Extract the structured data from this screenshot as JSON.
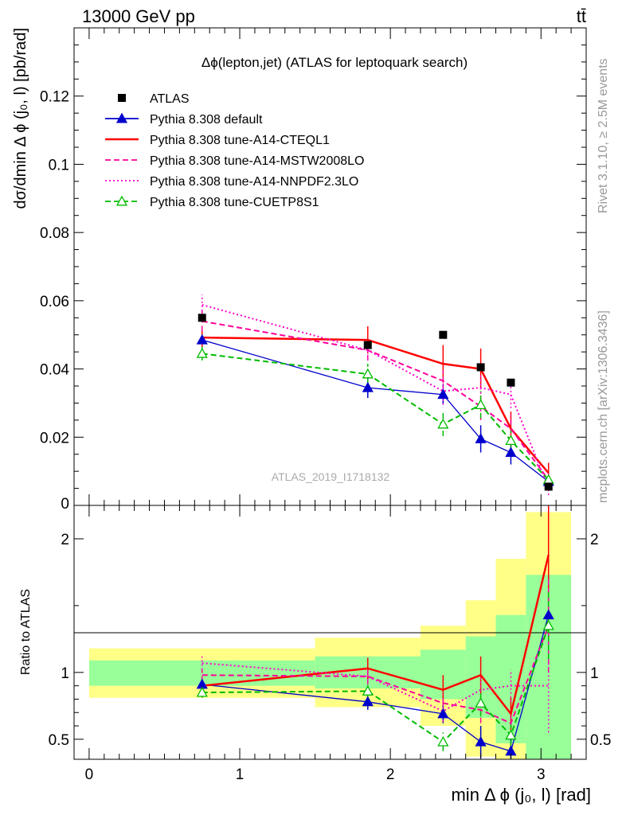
{
  "header": {
    "left": "13000 GeV pp",
    "right": "tt̄"
  },
  "side_labels": {
    "rivet": "Rivet 3.1.10, ≥ 2.5M events",
    "mcplots": "mcplots.cern.ch [arXiv:1306.3436]"
  },
  "watermark": "ATLAS_2019_I1718132",
  "chart_data": [
    {
      "type": "line",
      "title": "Δϕ(lepton,jet) (ATLAS for leptoquark search)",
      "ylabel": "dσ/dmin Δ ϕ (j₀, l) [pb/rad]",
      "xlim": [
        -0.1,
        3.3
      ],
      "ylim": [
        0,
        0.14
      ],
      "yticks": [
        0.02,
        0.04,
        0.06,
        0.08,
        0.1,
        0.12
      ],
      "ytick_labels": [
        "0.02",
        "0.04",
        "0.06",
        "0.08",
        "0.1",
        "0.12"
      ],
      "ybottom_label": "0",
      "legend": "top-left",
      "data": {
        "name": "ATLAS",
        "x": [
          0.75,
          1.85,
          2.35,
          2.6,
          2.8,
          3.05
        ],
        "y": [
          0.055,
          0.047,
          0.05,
          0.0405,
          0.036,
          0.0055
        ]
      },
      "series": [
        {
          "name": "Pythia 8.308 default",
          "color": "#0000cc",
          "style": "solid",
          "marker": "triangle-filled",
          "x": [
            0.75,
            1.85,
            2.35,
            2.6,
            2.8,
            3.05
          ],
          "y": [
            0.0485,
            0.0345,
            0.0325,
            0.0195,
            0.0155,
            0.007
          ],
          "err": [
            0.003,
            0.003,
            0.003,
            0.004,
            0.0035,
            0.0015
          ]
        },
        {
          "name": "Pythia 8.308 tune-A14-CTEQL1",
          "color": "#ff0000",
          "style": "solid",
          "marker": "none",
          "x": [
            0.75,
            1.85,
            2.35,
            2.6,
            2.8,
            3.05
          ],
          "y": [
            0.0492,
            0.0485,
            0.0415,
            0.04,
            0.0225,
            0.0095
          ],
          "err": [
            0.003,
            0.004,
            0.0055,
            0.006,
            0.005,
            0.003
          ]
        },
        {
          "name": "Pythia 8.308 tune-A14-MSTW2008LO",
          "color": "#ff0099",
          "style": "dashed",
          "marker": "none",
          "x": [
            0.75,
            1.85,
            2.35,
            2.6,
            2.8,
            3.05
          ],
          "y": [
            0.054,
            0.0455,
            0.0365,
            0.029,
            0.0225,
            0.0075
          ],
          "err": [
            0.003,
            0.003,
            0.003,
            0.004,
            0.004,
            0.002
          ]
        },
        {
          "name": "Pythia 8.308 tune-A14-NNPDF2.3LO",
          "color": "#ff00cc",
          "style": "dotted",
          "marker": "none",
          "x": [
            0.75,
            1.85,
            2.35,
            2.6,
            2.8,
            3.05
          ],
          "y": [
            0.0588,
            0.0455,
            0.0335,
            0.0345,
            0.0325,
            0.005
          ],
          "err": [
            0.003,
            0.003,
            0.004,
            0.004,
            0.004,
            0.002
          ]
        },
        {
          "name": "Pythia 8.308 tune-CUETP8S1",
          "color": "#00bb00",
          "style": "dashed",
          "marker": "triangle-open",
          "x": [
            0.75,
            1.85,
            2.35,
            2.6,
            2.8,
            3.05
          ],
          "y": [
            0.0445,
            0.0385,
            0.0238,
            0.0295,
            0.019,
            0.0075
          ],
          "err": [
            0.002,
            0.003,
            0.0035,
            0.004,
            0.003,
            0.0015
          ]
        }
      ]
    },
    {
      "type": "line",
      "title": "",
      "xlabel": "min Δ ϕ (j₀, l) [rad]",
      "ylabel": "Ratio to ATLAS",
      "xlim": [
        -0.1,
        3.3
      ],
      "ylim": [
        0.35,
        2.25
      ],
      "xticks": [
        0,
        1,
        2,
        3
      ],
      "xtick_labels": [
        "0",
        "1",
        "2",
        "3"
      ],
      "yticks": [
        0.5,
        1,
        2
      ],
      "ytick_labels": [
        "0.5",
        "1",
        "2"
      ],
      "bands": {
        "bins": [
          [
            0,
            1.5
          ],
          [
            1.5,
            2.2
          ],
          [
            2.2,
            2.5
          ],
          [
            2.5,
            2.7
          ],
          [
            2.7,
            2.9
          ],
          [
            2.9,
            3.2
          ]
        ],
        "inner": [
          [
            0.9,
            1.09
          ],
          [
            0.88,
            1.12
          ],
          [
            0.8,
            1.17
          ],
          [
            0.66,
            1.27
          ],
          [
            0.47,
            1.43
          ],
          [
            0.3,
            1.73
          ]
        ],
        "outer": [
          [
            0.81,
            1.18
          ],
          [
            0.74,
            1.26
          ],
          [
            0.6,
            1.35
          ],
          [
            0.37,
            1.54
          ],
          [
            0.35,
            1.85
          ],
          [
            0.35,
            2.2
          ]
        ],
        "inner_color": "#99ff99",
        "outer_color": "#ffff88"
      },
      "series": [
        {
          "name": "Pythia 8.308 default",
          "color": "#0000cc",
          "style": "solid",
          "marker": "triangle-filled",
          "x": [
            0.75,
            1.85,
            2.35,
            2.6,
            2.8,
            3.05
          ],
          "y": [
            0.91,
            0.78,
            0.69,
            0.48,
            0.41,
            1.43
          ],
          "err": [
            0.05,
            0.06,
            0.07,
            0.12,
            0.1,
            0.3
          ]
        },
        {
          "name": "Pythia 8.308 tune-A14-CTEQL1",
          "color": "#ff0000",
          "style": "solid",
          "marker": "none",
          "x": [
            0.75,
            1.85,
            2.35,
            2.6,
            2.8,
            3.05
          ],
          "y": [
            0.9,
            1.03,
            0.87,
            0.98,
            0.69,
            1.88
          ],
          "err": [
            0.05,
            0.08,
            0.11,
            0.14,
            0.12,
            0.5
          ]
        },
        {
          "name": "Pythia 8.308 tune-A14-MSTW2008LO",
          "color": "#ff0099",
          "style": "dashed",
          "marker": "none",
          "x": [
            0.75,
            1.85,
            2.35,
            2.6,
            2.8,
            3.05
          ],
          "y": [
            0.98,
            0.97,
            0.77,
            0.72,
            0.62,
            1.35
          ],
          "err": [
            0.05,
            0.06,
            0.07,
            0.1,
            0.1,
            0.35
          ]
        },
        {
          "name": "Pythia 8.308 tune-A14-NNPDF2.3LO",
          "color": "#ff00cc",
          "style": "dotted",
          "marker": "none",
          "x": [
            0.75,
            1.85,
            2.35,
            2.6,
            2.8,
            3.05
          ],
          "y": [
            1.07,
            0.97,
            0.71,
            0.87,
            0.9,
            0.9
          ],
          "err": [
            0.05,
            0.06,
            0.08,
            0.1,
            0.12,
            0.35
          ]
        },
        {
          "name": "Pythia 8.308 tune-CUETP8S1",
          "color": "#00bb00",
          "style": "dashed",
          "marker": "triangle-open",
          "x": [
            0.75,
            1.85,
            2.35,
            2.6,
            2.8,
            3.05
          ],
          "y": [
            0.85,
            0.86,
            0.48,
            0.77,
            0.53,
            1.35
          ],
          "err": [
            0.04,
            0.06,
            0.07,
            0.1,
            0.08,
            0.25
          ]
        }
      ]
    }
  ]
}
